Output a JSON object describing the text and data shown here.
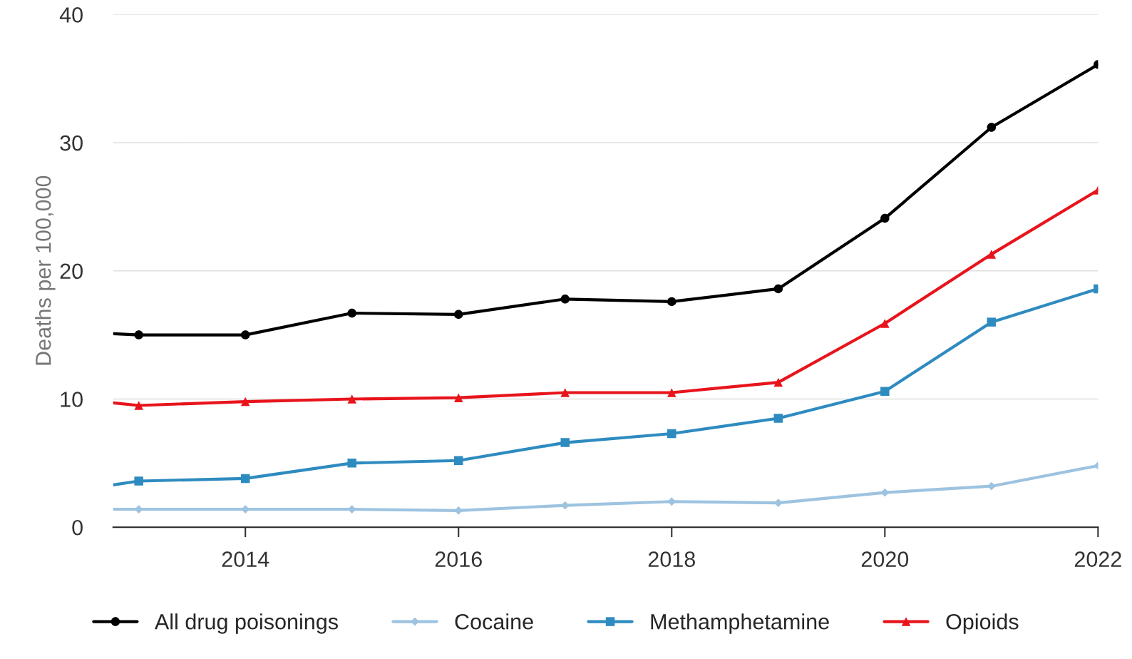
{
  "chart_data": {
    "type": "line",
    "ylabel": "Deaths per 100,000",
    "x": [
      2012.76,
      2013,
      2014,
      2015,
      2016,
      2017,
      2018,
      2019,
      2020,
      2021,
      2022
    ],
    "series": [
      {
        "name": "All drug poisonings",
        "color": "#000000",
        "marker": "circle",
        "values": [
          15.1,
          15.0,
          15.0,
          16.7,
          16.6,
          17.8,
          17.6,
          18.6,
          24.1,
          31.2,
          36.1
        ]
      },
      {
        "name": "Cocaine",
        "color": "#9dc3e0",
        "marker": "diamond",
        "values": [
          1.4,
          1.4,
          1.4,
          1.4,
          1.3,
          1.7,
          2.0,
          1.9,
          2.7,
          3.2,
          4.8
        ]
      },
      {
        "name": "Methamphetamine",
        "color": "#2e8bc0",
        "marker": "square",
        "values": [
          3.3,
          3.6,
          3.8,
          5.0,
          5.2,
          6.6,
          7.3,
          8.5,
          10.6,
          16.0,
          18.6
        ]
      },
      {
        "name": "Opioids",
        "color": "#e8141c",
        "marker": "triangle",
        "values": [
          9.7,
          9.5,
          9.8,
          10.0,
          10.1,
          10.5,
          10.5,
          11.3,
          15.9,
          21.3,
          26.3
        ]
      }
    ],
    "xlim": [
      2012.76,
      2022
    ],
    "xticks": [
      2014,
      2016,
      2018,
      2020,
      2022
    ],
    "ylim": [
      0,
      40
    ],
    "yticks": [
      0,
      10,
      20,
      30,
      40
    ],
    "grid": "y",
    "legend": "bottom",
    "line_style": "solid"
  }
}
